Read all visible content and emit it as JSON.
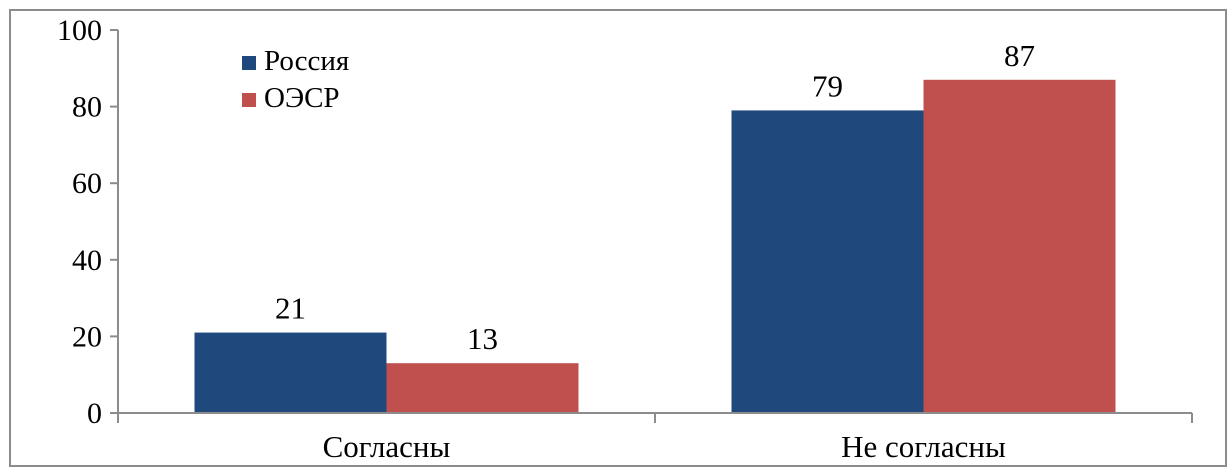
{
  "chart_data": {
    "type": "bar",
    "categories": [
      "Согласны",
      "Не согласны"
    ],
    "series": [
      {
        "name": "Россия",
        "values": [
          21,
          79
        ],
        "color": "#1F497D"
      },
      {
        "name": "ОЭСР",
        "values": [
          13,
          87
        ],
        "color": "#C0504D"
      }
    ],
    "data_labels": [
      [
        "21",
        "79"
      ],
      [
        "13",
        "87"
      ]
    ],
    "y_ticks": [
      "0",
      "20",
      "40",
      "60",
      "80",
      "100"
    ],
    "ylim": [
      0,
      100
    ],
    "title": "",
    "xlabel": "",
    "ylabel": "",
    "grid": false,
    "legend_position": "top-left",
    "plot_border": true
  }
}
